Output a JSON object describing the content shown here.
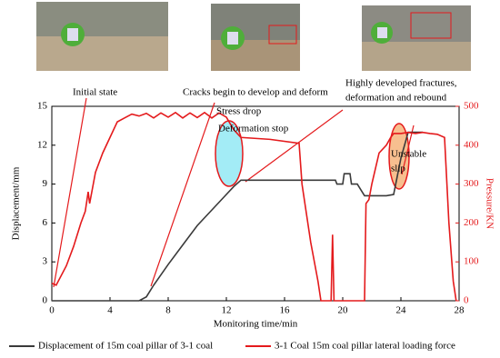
{
  "chart_data": {
    "type": "line",
    "xlabel": "Monitoring time/min",
    "ylabel": "Displacement/mm",
    "y2label": "Pressure/KN",
    "xlim": [
      0,
      28
    ],
    "xticks": [
      0,
      4,
      8,
      12,
      16,
      20,
      24,
      28
    ],
    "ylim": [
      0,
      15
    ],
    "yticks": [
      0,
      3,
      6,
      9,
      12,
      15
    ],
    "y2lim": [
      0,
      500
    ],
    "y2ticks": [
      0,
      100,
      200,
      300,
      400,
      500
    ],
    "series": [
      {
        "name": "Displacement of 15m coal pillar of 3-1 coal",
        "color": "#3a3a3a",
        "x": [
          0,
          6,
          6.5,
          7,
          8,
          9,
          10,
          11,
          12,
          12.5,
          13,
          14,
          16,
          18,
          19.5,
          19.6,
          20,
          20.1,
          20.5,
          20.6,
          21,
          21.5,
          22,
          23,
          23.5,
          24,
          24.5,
          25.5
        ],
        "values": [
          0,
          0,
          0.3,
          1.2,
          2.8,
          4.3,
          5.8,
          7,
          8.2,
          8.8,
          9.3,
          9.3,
          9.3,
          9.3,
          9.3,
          9.0,
          9.0,
          9.8,
          9.8,
          9.0,
          9.0,
          8.1,
          8.1,
          8.1,
          8.2,
          11,
          13,
          13
        ]
      },
      {
        "name": "3-1 Coal 15m coal pillar lateral loading force",
        "color": "#e41a1c",
        "axis": "y2",
        "x": [
          0,
          0.3,
          1,
          1.5,
          2,
          2.3,
          2.5,
          2.6,
          3,
          3.5,
          4,
          4.5,
          5,
          5.5,
          6,
          6.5,
          7,
          7.5,
          8,
          8.5,
          9,
          9.5,
          10,
          10.5,
          11,
          11.5,
          12,
          12.5,
          13,
          15,
          17,
          17.2,
          17.8,
          18.3,
          18.5,
          19.2,
          19.3,
          19.4,
          19.5,
          21.5,
          21.6,
          21.8,
          22,
          22.5,
          23,
          23.3,
          23.5,
          24,
          24.5,
          25,
          25.5,
          26,
          26.5,
          27,
          27.3,
          27.6,
          27.8
        ],
        "values": [
          45,
          40,
          90,
          140,
          200,
          230,
          280,
          250,
          330,
          380,
          420,
          460,
          470,
          480,
          475,
          482,
          470,
          483,
          472,
          484,
          470,
          483,
          471,
          484,
          470,
          483,
          472,
          440,
          420,
          415,
          405,
          300,
          150,
          50,
          0,
          0,
          170,
          0,
          0,
          0,
          250,
          260,
          300,
          380,
          400,
          420,
          430,
          430,
          433,
          430,
          433,
          430,
          428,
          420,
          200,
          50,
          0
        ]
      }
    ],
    "annotations": [
      [
        "Initial state"
      ],
      [
        "Cracks begin to develop and deform"
      ],
      [
        "Stress drop"
      ],
      [
        "Deformation stop"
      ],
      [
        "Highly developed fractures,",
        "deformation and rebound"
      ],
      [
        "Unstable",
        "slip"
      ]
    ]
  }
}
